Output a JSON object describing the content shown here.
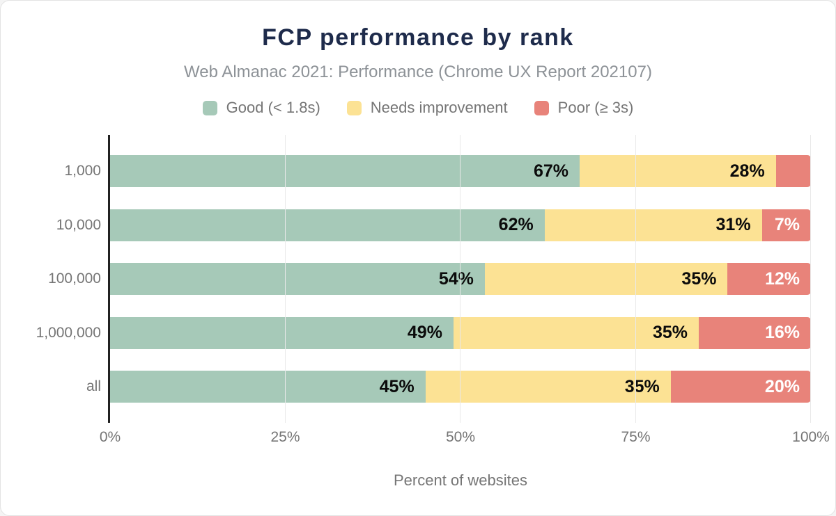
{
  "chart_data": {
    "type": "bar",
    "stacked": true,
    "orientation": "horizontal",
    "title": "FCP performance by rank",
    "subtitle": "Web Almanac 2021: Performance (Chrome UX Report 202107)",
    "xlabel": "Percent of websites",
    "xlim": [
      0,
      100
    ],
    "x_ticks": [
      "0%",
      "25%",
      "50%",
      "75%",
      "100%"
    ],
    "x_tick_values": [
      0,
      25,
      50,
      75,
      100
    ],
    "grid": "vertical-lines",
    "legend_position": "top",
    "categories": [
      "1,000",
      "10,000",
      "100,000",
      "1,000,000",
      "all"
    ],
    "series": [
      {
        "key": "good",
        "name": "Good (< 1.8s)",
        "color": "#a6c9b8",
        "label_color": "dark",
        "values": [
          67,
          62,
          54,
          49,
          45
        ]
      },
      {
        "key": "needs-improvement",
        "name": "Needs improvement",
        "color": "#fce294",
        "label_color": "dark",
        "values": [
          28,
          31,
          35,
          35,
          35
        ]
      },
      {
        "key": "poor",
        "name": "Poor (≥ 3s)",
        "color": "#e8837a",
        "label_color": "light",
        "values": [
          5,
          7,
          12,
          16,
          20
        ]
      }
    ],
    "value_labels": [
      [
        "67%",
        "28%",
        ""
      ],
      [
        "62%",
        "31%",
        "7%"
      ],
      [
        "54%",
        "35%",
        "12%"
      ],
      [
        "49%",
        "35%",
        "16%"
      ],
      [
        "45%",
        "35%",
        "20%"
      ]
    ]
  },
  "colors": {
    "bg": "#ffffff",
    "card_border": "#e3e3e3",
    "title_color": "#1e2b4b",
    "subtitle_color": "#8d9297",
    "text_muted": "#757575",
    "axis_line": "#212121",
    "gridline": "#e9e9e9",
    "value_label_dark": "#0b0b0b",
    "value_label_light": "#ffffff"
  }
}
